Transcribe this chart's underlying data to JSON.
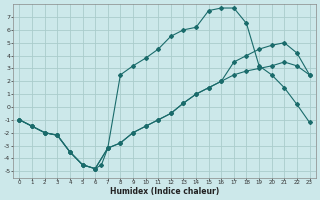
{
  "xlabel": "Humidex (Indice chaleur)",
  "bg_color": "#cce8ea",
  "grid_color": "#aacccc",
  "line_color": "#1a6b6b",
  "xlim": [
    -0.5,
    23.5
  ],
  "ylim": [
    -5.5,
    8.0
  ],
  "xticks": [
    0,
    1,
    2,
    3,
    4,
    5,
    6,
    7,
    8,
    9,
    10,
    11,
    12,
    13,
    14,
    15,
    16,
    17,
    18,
    19,
    20,
    21,
    22,
    23
  ],
  "yticks": [
    -5,
    -4,
    -3,
    -2,
    -1,
    0,
    1,
    2,
    3,
    4,
    5,
    6,
    7
  ],
  "line1_x": [
    0,
    1,
    2,
    3,
    4,
    5,
    6,
    6.5,
    7,
    8,
    9,
    10,
    11,
    12,
    13,
    14,
    15,
    16,
    17,
    18,
    19,
    20,
    21,
    22,
    23
  ],
  "line1_y": [
    -1,
    -1.5,
    -2,
    -2.2,
    -3.5,
    -4.5,
    -4.8,
    -4.5,
    -3.2,
    -2.8,
    -2.0,
    -1.5,
    -1.0,
    -0.5,
    0.3,
    1.0,
    1.5,
    2.0,
    3.5,
    4.0,
    4.5,
    4.8,
    5.0,
    4.2,
    2.5
  ],
  "line2_x": [
    0,
    1,
    2,
    3,
    4,
    5,
    6,
    7,
    8,
    9,
    10,
    11,
    12,
    13,
    14,
    15,
    16,
    17,
    18,
    19,
    20,
    21,
    22,
    23
  ],
  "line2_y": [
    -1,
    -1.5,
    -2,
    -2.2,
    -3.5,
    -4.5,
    -4.8,
    -3.2,
    2.5,
    3.2,
    3.8,
    4.5,
    5.5,
    6.0,
    6.2,
    7.5,
    7.7,
    7.7,
    6.5,
    3.2,
    2.5,
    1.5,
    0.2,
    -1.2
  ],
  "line3_x": [
    0,
    1,
    2,
    3,
    4,
    5,
    6,
    7,
    8,
    9,
    10,
    11,
    12,
    13,
    14,
    15,
    16,
    17,
    18,
    19,
    20,
    21,
    22,
    23
  ],
  "line3_y": [
    -1,
    -1.5,
    -2,
    -2.2,
    -3.5,
    -4.5,
    -4.8,
    -3.2,
    -2.8,
    -2.0,
    -1.5,
    -1.0,
    -0.5,
    0.3,
    1.0,
    1.5,
    2.0,
    2.5,
    2.8,
    3.0,
    3.2,
    3.5,
    3.2,
    2.5
  ]
}
